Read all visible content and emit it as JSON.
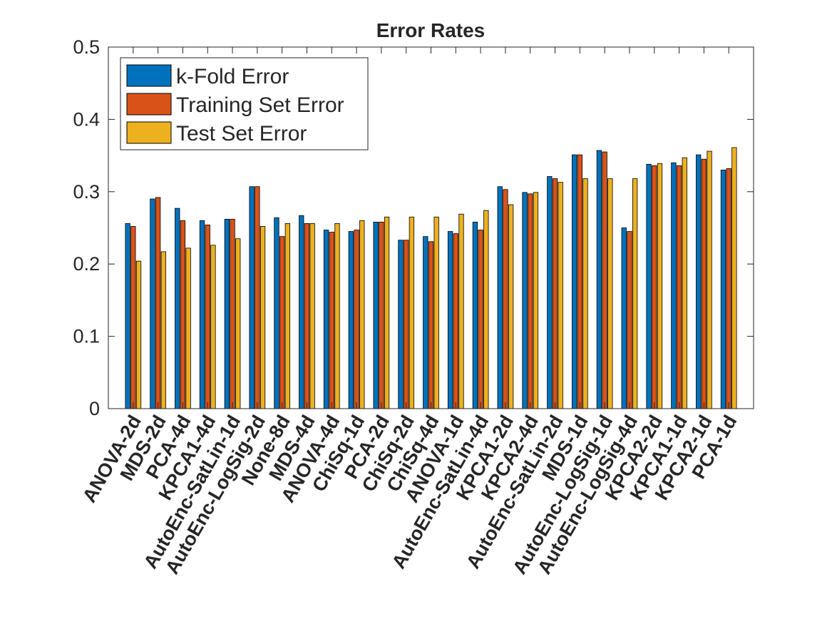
{
  "chart_data": {
    "type": "bar",
    "title": "Error Rates",
    "xlabel": "",
    "ylabel": "",
    "ylim": [
      0,
      0.5
    ],
    "yticks": [
      "0",
      "0.1",
      "0.2",
      "0.3",
      "0.4",
      "0.5"
    ],
    "grid": false,
    "legend_position": "top-left",
    "categories": [
      "ANOVA-2d",
      "MDS-2d",
      "PCA-4d",
      "KPCA1-4d",
      "AutoEnc-SatLin-1d",
      "AutoEnc-LogSig-2d",
      "None-8d",
      "MDS-4d",
      "ANOVA-4d",
      "ChiSq-1d",
      "PCA-2d",
      "ChiSq-2d",
      "ChiSq-4d",
      "ANOVA-1d",
      "AutoEnc-SatLin-4d",
      "KPCA1-2d",
      "KPCA2-4d",
      "AutoEnc-SatLin-2d",
      "MDS-1d",
      "AutoEnc-LogSig-1d",
      "AutoEnc-LogSig-4d",
      "KPCA2-2d",
      "KPCA1-1d",
      "KPCA2-1d",
      "PCA-1d"
    ],
    "series": [
      {
        "name": "k-Fold Error",
        "color": "#0072BD",
        "values": [
          0.256,
          0.29,
          0.277,
          0.26,
          0.262,
          0.307,
          0.264,
          0.267,
          0.247,
          0.245,
          0.258,
          0.233,
          0.238,
          0.245,
          0.258,
          0.307,
          0.299,
          0.321,
          0.351,
          0.357,
          0.25,
          0.338,
          0.34,
          0.351,
          0.33
        ]
      },
      {
        "name": "Training Set Error",
        "color": "#D95319",
        "values": [
          0.252,
          0.292,
          0.26,
          0.254,
          0.262,
          0.307,
          0.238,
          0.256,
          0.244,
          0.247,
          0.258,
          0.233,
          0.231,
          0.242,
          0.247,
          0.303,
          0.297,
          0.318,
          0.351,
          0.355,
          0.245,
          0.336,
          0.336,
          0.345,
          0.332
        ]
      },
      {
        "name": "Test Set Error",
        "color": "#EDB120",
        "values": [
          0.204,
          0.217,
          0.222,
          0.226,
          0.235,
          0.252,
          0.256,
          0.256,
          0.256,
          0.26,
          0.265,
          0.265,
          0.265,
          0.269,
          0.274,
          0.282,
          0.299,
          0.313,
          0.318,
          0.318,
          0.318,
          0.339,
          0.347,
          0.356,
          0.361
        ]
      }
    ]
  }
}
